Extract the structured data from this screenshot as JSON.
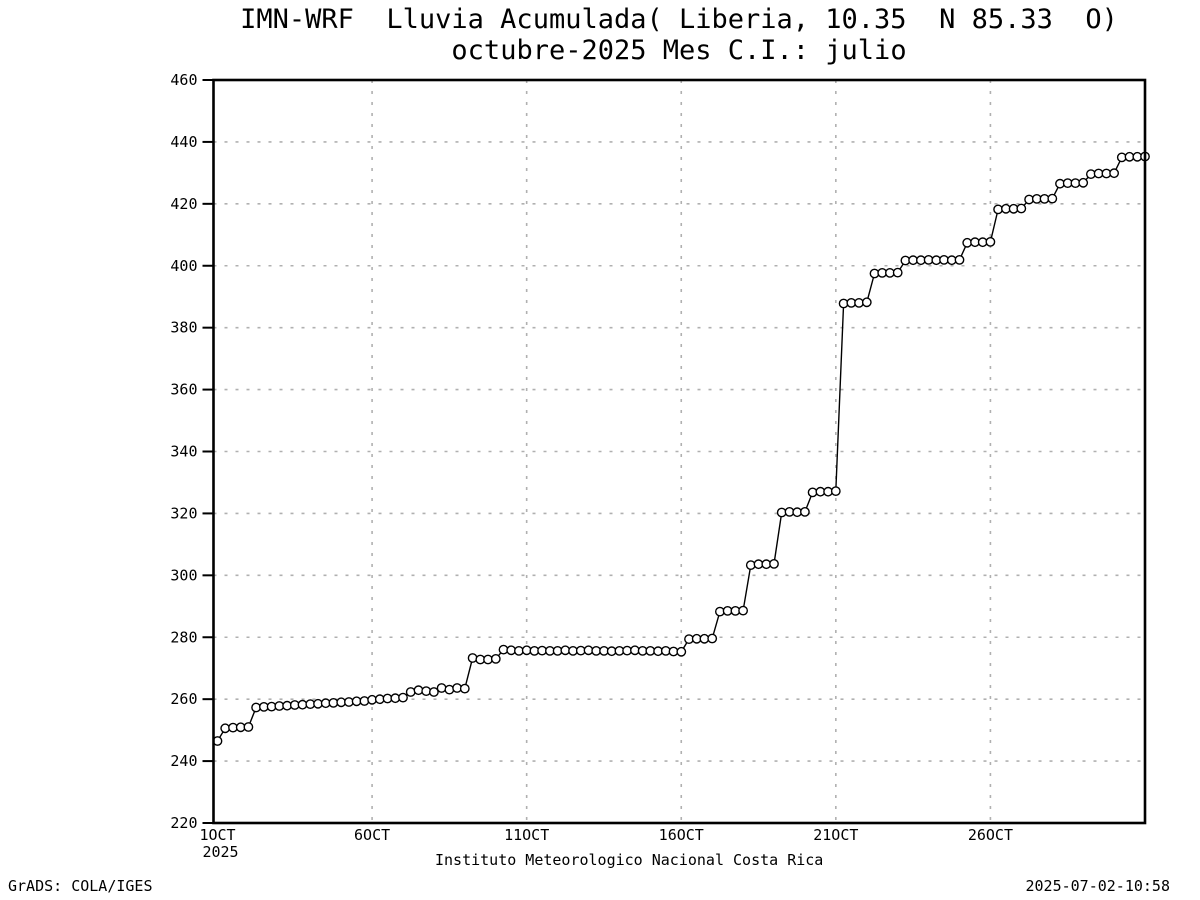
{
  "header": {
    "title_line1": "IMN-WRF  Lluvia Acumulada( Liberia, 10.35  N 85.33  O)",
    "title_line2": "octubre-2025 Mes C.I.: julio"
  },
  "footer": {
    "left_credit": "GrADS: COLA/IGES",
    "center_caption": "Instituto Meteorologico Nacional Costa Rica",
    "right_timestamp": "2025-07-02-10:58"
  },
  "chart_data": {
    "type": "line",
    "subtype": "cumulative-rainfall-step",
    "marker": "open-circle",
    "title": "IMN-WRF  Lluvia Acumulada( Liberia, 10.35  N 85.33  O)",
    "subtitle": "octubre-2025 Mes C.I.: julio",
    "station": "Liberia",
    "lat_label": "10.35 N",
    "lon_label": "85.33 O",
    "month_label": "octubre-2025",
    "init_label": "Mes C.I.: julio",
    "ylim": [
      220,
      460
    ],
    "ytick_interval": 20,
    "ytick_labels": [
      "220",
      "240",
      "260",
      "280",
      "300",
      "320",
      "340",
      "360",
      "380",
      "400",
      "420",
      "440",
      "460"
    ],
    "xticks": [
      {
        "label": "1OCT",
        "sublabel": "2025",
        "day": 0
      },
      {
        "label": "6OCT",
        "day": 5
      },
      {
        "label": "11OCT",
        "day": 10
      },
      {
        "label": "16OCT",
        "day": 15
      },
      {
        "label": "21OCT",
        "day": 20
      },
      {
        "label": "26OCT",
        "day": 25
      }
    ],
    "x_start": "1OCT2025 00Z",
    "x_end": "31OCT2025 00Z",
    "x_step_hours": 6,
    "grid": true,
    "legend": "none",
    "colors": {
      "line": "#000000",
      "marker_fill": "#ffffff",
      "marker_stroke": "#000000",
      "grid": "#b0b0b0",
      "frame": "#000000"
    },
    "values": [
      246.5,
      250.6,
      250.8,
      250.9,
      251.0,
      257.3,
      257.5,
      257.6,
      257.8,
      257.9,
      258.1,
      258.2,
      258.4,
      258.5,
      258.7,
      258.8,
      259.0,
      259.1,
      259.3,
      259.4,
      259.8,
      260.0,
      260.2,
      260.3,
      260.5,
      262.3,
      262.9,
      262.6,
      262.3,
      263.6,
      263.1,
      263.6,
      263.4,
      273.3,
      272.8,
      272.8,
      273.0,
      276.0,
      275.8,
      275.6,
      275.8,
      275.6,
      275.7,
      275.6,
      275.6,
      275.8,
      275.6,
      275.7,
      275.8,
      275.6,
      275.6,
      275.5,
      275.6,
      275.7,
      275.8,
      275.6,
      275.6,
      275.5,
      275.6,
      275.4,
      275.3,
      279.4,
      279.5,
      279.5,
      279.6,
      288.3,
      288.5,
      288.5,
      288.6,
      303.3,
      303.6,
      303.6,
      303.7,
      320.3,
      320.5,
      320.4,
      320.5,
      326.8,
      327.0,
      327.0,
      327.2,
      387.8,
      388.0,
      388.0,
      388.2,
      397.5,
      397.7,
      397.7,
      397.8,
      401.7,
      401.8,
      401.8,
      401.9,
      401.8,
      401.9,
      401.8,
      401.9,
      407.4,
      407.6,
      407.6,
      407.7,
      418.2,
      418.4,
      418.4,
      418.5,
      421.4,
      421.6,
      421.6,
      421.7,
      426.5,
      426.7,
      426.7,
      426.8,
      429.6,
      429.8,
      429.8,
      429.9,
      435.0,
      435.2,
      435.2,
      435.3
    ]
  }
}
